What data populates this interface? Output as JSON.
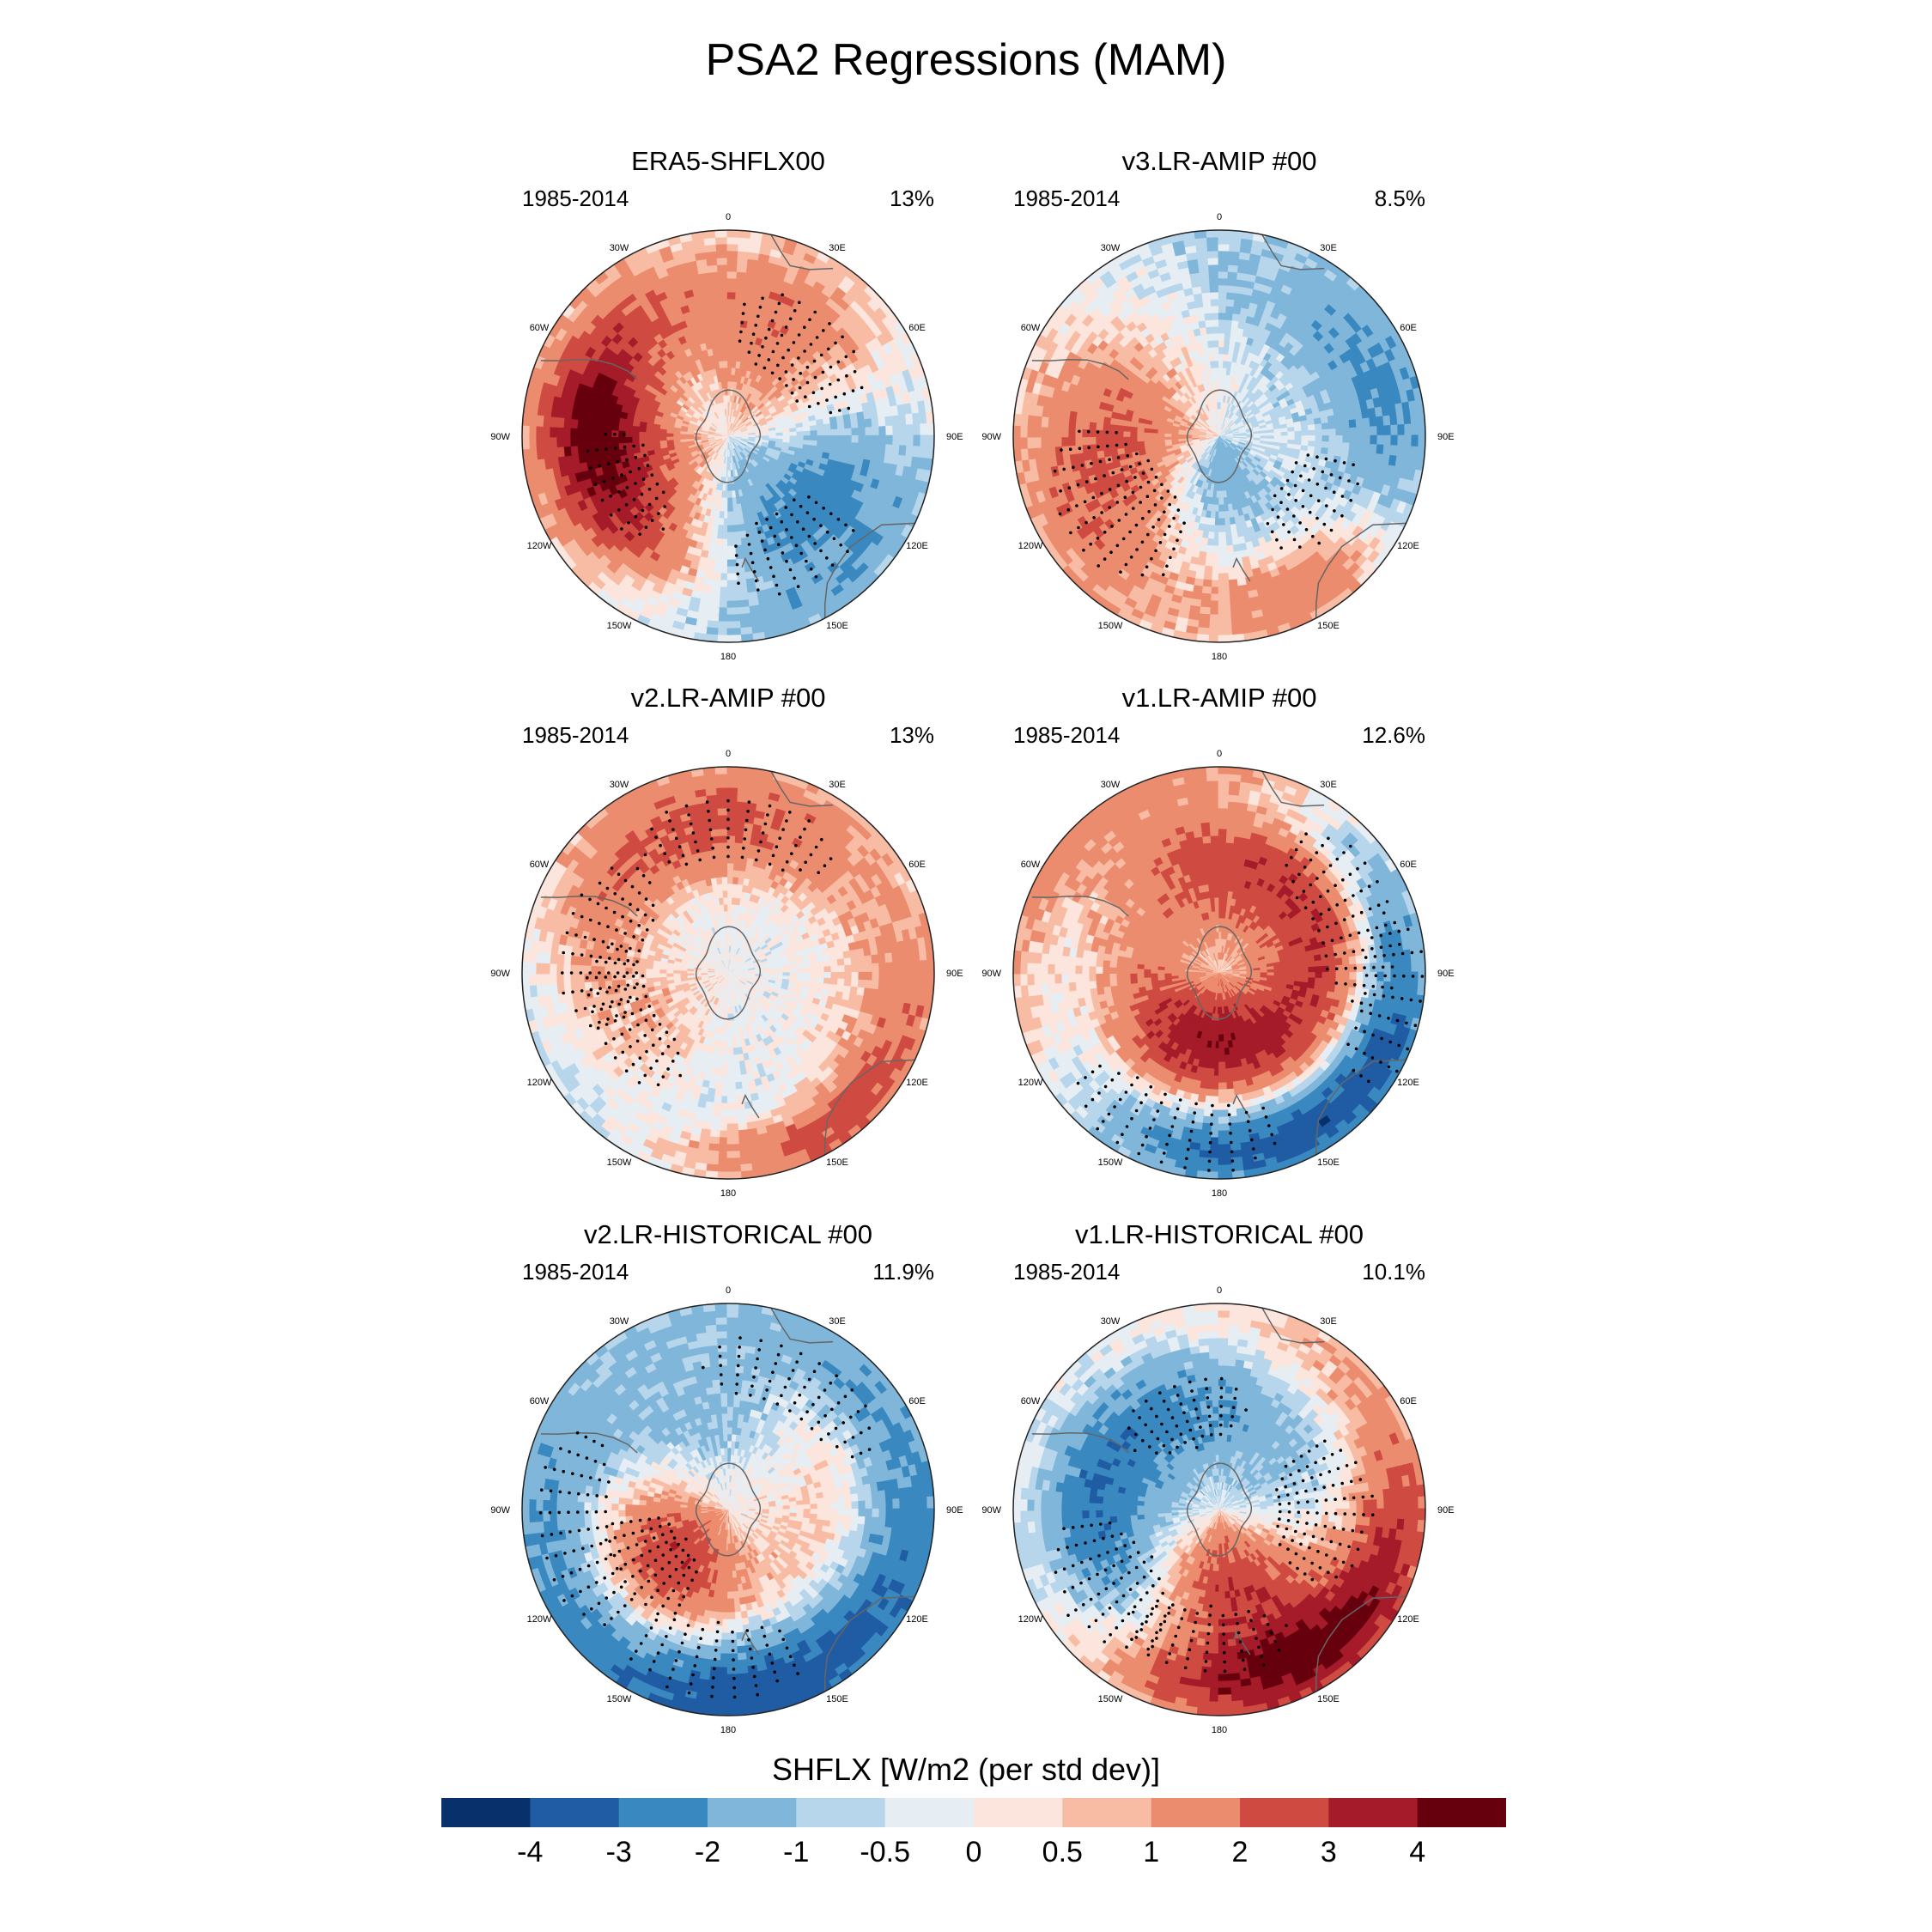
{
  "title": "PSA2 Regressions (MAM)",
  "lon_labels": [
    "0",
    "30E",
    "60E",
    "90E",
    "120E",
    "150E",
    "180",
    "150W",
    "120W",
    "90W",
    "60W",
    "30W"
  ],
  "panels": [
    {
      "title": "ERA5-SHFLX00",
      "period": "1985-2014",
      "percent": "13%",
      "anomalies": [
        [
          -115,
          44,
          0.58,
          0.3,
          3.5
        ],
        [
          150,
          58,
          0.62,
          0.3,
          -3.2
        ],
        [
          40,
          52,
          0.55,
          0.3,
          2.6
        ],
        [
          -72,
          30,
          0.7,
          0.22,
          2.2
        ],
        [
          95,
          40,
          0.62,
          0.25,
          -1.5
        ],
        [
          -95,
          70,
          0.35,
          0.25,
          -0.9
        ],
        [
          145,
          45,
          0.25,
          0.35,
          -1.0
        ],
        [
          -150,
          75,
          0.55,
          0.25,
          1.0
        ],
        [
          60,
          85,
          0.85,
          0.2,
          1.0
        ],
        [
          118,
          90,
          0.95,
          0.15,
          2.0
        ],
        [
          150,
          95,
          0.93,
          0.12,
          -2.6
        ],
        [
          165,
          60,
          0.45,
          0.5,
          0.8
        ],
        [
          10,
          75,
          0.9,
          0.3,
          -1.0
        ]
      ],
      "stipple": [
        [
          -115,
          30,
          0.55,
          0.18
        ],
        [
          40,
          40,
          0.55,
          0.22
        ],
        [
          150,
          30,
          0.62,
          0.22
        ]
      ]
    },
    {
      "title": "v3.LR-AMIP  #00",
      "period": "1985-2014",
      "percent": "8.5%",
      "anomalies": [
        [
          -110,
          55,
          0.45,
          0.3,
          3.0
        ],
        [
          -130,
          60,
          0.75,
          0.3,
          2.4
        ],
        [
          -175,
          55,
          0.35,
          0.35,
          -2.8
        ],
        [
          -180,
          80,
          0.7,
          0.4,
          -1.2
        ],
        [
          125,
          45,
          0.55,
          0.3,
          2.0
        ],
        [
          145,
          25,
          0.85,
          0.15,
          2.6
        ],
        [
          100,
          40,
          0.8,
          0.2,
          -1.8
        ],
        [
          40,
          80,
          0.6,
          0.4,
          -0.9
        ],
        [
          -30,
          80,
          0.7,
          0.3,
          -0.8
        ],
        [
          0,
          60,
          0.5,
          0.25,
          0.5
        ]
      ],
      "stipple": [
        [
          -125,
          40,
          0.6,
          0.28
        ],
        [
          125,
          30,
          0.55,
          0.2
        ]
      ]
    },
    {
      "title": "v2.LR-AMIP  #00",
      "period": "1985-2014",
      "percent": "13%",
      "anomalies": [
        [
          -78,
          55,
          0.62,
          0.28,
          -2.4
        ],
        [
          -115,
          55,
          0.55,
          0.25,
          2.6
        ],
        [
          5,
          55,
          0.7,
          0.25,
          2.2
        ],
        [
          -40,
          50,
          0.75,
          0.2,
          1.8
        ],
        [
          120,
          45,
          0.75,
          0.25,
          1.8
        ],
        [
          155,
          40,
          0.9,
          0.12,
          2.6
        ],
        [
          70,
          70,
          0.6,
          0.3,
          -1.2
        ],
        [
          -160,
          60,
          0.8,
          0.35,
          -1.0
        ],
        [
          -170,
          75,
          0.6,
          0.35,
          1.0
        ],
        [
          180,
          40,
          0.55,
          0.3,
          -1.2
        ],
        [
          175,
          70,
          0.8,
          0.25,
          -0.8
        ]
      ],
      "stipple": [
        [
          -78,
          40,
          0.62,
          0.22
        ],
        [
          -115,
          40,
          0.55,
          0.18
        ],
        [
          5,
          40,
          0.7,
          0.18
        ]
      ]
    },
    {
      "title": "v1.LR-AMIP  #00",
      "period": "1985-2014",
      "percent": "12.6%",
      "anomalies": [
        [
          -150,
          60,
          0.36,
          0.22,
          3.0
        ],
        [
          150,
          55,
          0.45,
          0.3,
          1.8
        ],
        [
          -80,
          50,
          0.65,
          0.25,
          -2.0
        ],
        [
          65,
          50,
          0.7,
          0.25,
          2.2
        ],
        [
          -60,
          70,
          0.9,
          0.2,
          2.6
        ],
        [
          -165,
          55,
          0.8,
          0.25,
          -2.2
        ],
        [
          -125,
          40,
          0.8,
          0.2,
          1.6
        ],
        [
          25,
          80,
          0.85,
          0.15,
          -2.2
        ],
        [
          150,
          80,
          0.85,
          0.15,
          -2.4
        ],
        [
          95,
          50,
          0.8,
          0.2,
          -1.5
        ],
        [
          0,
          80,
          0.5,
          0.3,
          1.6
        ],
        [
          -20,
          40,
          0.75,
          0.3,
          1.0
        ]
      ],
      "stipple": [
        [
          65,
          40,
          0.7,
          0.22
        ],
        [
          -165,
          40,
          0.8,
          0.2
        ],
        [
          100,
          30,
          0.85,
          0.18
        ]
      ]
    },
    {
      "title": "v2.LR-HISTORICAL  #00",
      "period": "1985-2014",
      "percent": "11.9%",
      "anomalies": [
        [
          -125,
          48,
          0.38,
          0.25,
          3.0
        ],
        [
          -145,
          40,
          0.65,
          0.2,
          2.4
        ],
        [
          145,
          70,
          0.85,
          0.25,
          -3.0
        ],
        [
          -175,
          50,
          0.75,
          0.25,
          -2.2
        ],
        [
          30,
          50,
          0.7,
          0.2,
          2.0
        ],
        [
          -15,
          50,
          0.5,
          0.2,
          -1.8
        ],
        [
          -100,
          50,
          0.75,
          0.25,
          -1.8
        ],
        [
          50,
          45,
          0.8,
          0.15,
          -1.6
        ],
        [
          -30,
          70,
          0.85,
          0.25,
          -1.8
        ],
        [
          120,
          50,
          0.6,
          0.25,
          1.6
        ],
        [
          -60,
          60,
          0.8,
          0.25,
          1.4
        ]
      ],
      "stipple": [
        [
          -175,
          35,
          0.75,
          0.2
        ],
        [
          -125,
          35,
          0.45,
          0.2
        ],
        [
          30,
          40,
          0.7,
          0.18
        ],
        [
          -100,
          40,
          0.75,
          0.2
        ]
      ]
    },
    {
      "title": "v1.LR-HISTORICAL  #00",
      "period": "1985-2014",
      "percent": "10.1%",
      "anomalies": [
        [
          170,
          50,
          0.35,
          0.22,
          3.2
        ],
        [
          140,
          60,
          0.85,
          0.15,
          3.4
        ],
        [
          -125,
          50,
          0.65,
          0.3,
          -2.8
        ],
        [
          -20,
          55,
          0.5,
          0.25,
          -2.0
        ],
        [
          90,
          60,
          0.5,
          0.3,
          -2.0
        ],
        [
          150,
          40,
          0.7,
          0.2,
          1.5
        ],
        [
          -175,
          40,
          0.65,
          0.25,
          1.5
        ],
        [
          50,
          60,
          0.6,
          0.25,
          1.2
        ],
        [
          -90,
          70,
          0.9,
          0.15,
          1.2
        ],
        [
          -50,
          70,
          0.8,
          0.25,
          -1.2
        ],
        [
          10,
          70,
          0.9,
          0.3,
          0.7
        ]
      ],
      "stipple": [
        [
          -125,
          35,
          0.65,
          0.25
        ],
        [
          90,
          40,
          0.5,
          0.25
        ],
        [
          -175,
          35,
          0.65,
          0.18
        ],
        [
          -20,
          35,
          0.5,
          0.18
        ]
      ]
    }
  ],
  "colorbar": {
    "title": "SHFLX [W/m2 (per std dev)]",
    "colors": [
      "#08306b",
      "#1f5ca3",
      "#3a88c0",
      "#7fb6da",
      "#b7d6eb",
      "#e6eef4",
      "#fbe5dc",
      "#f8bca4",
      "#ec8c6e",
      "#cf4b42",
      "#a61b29",
      "#67000d"
    ],
    "tick_labels": [
      "-4",
      "-3",
      "-2",
      "-1",
      "-0.5",
      "0",
      "0.5",
      "1",
      "2",
      "3",
      "4"
    ],
    "levels": [
      -4,
      -3,
      -2,
      -1,
      -0.5,
      0,
      0.5,
      1,
      2,
      3,
      4
    ]
  }
}
